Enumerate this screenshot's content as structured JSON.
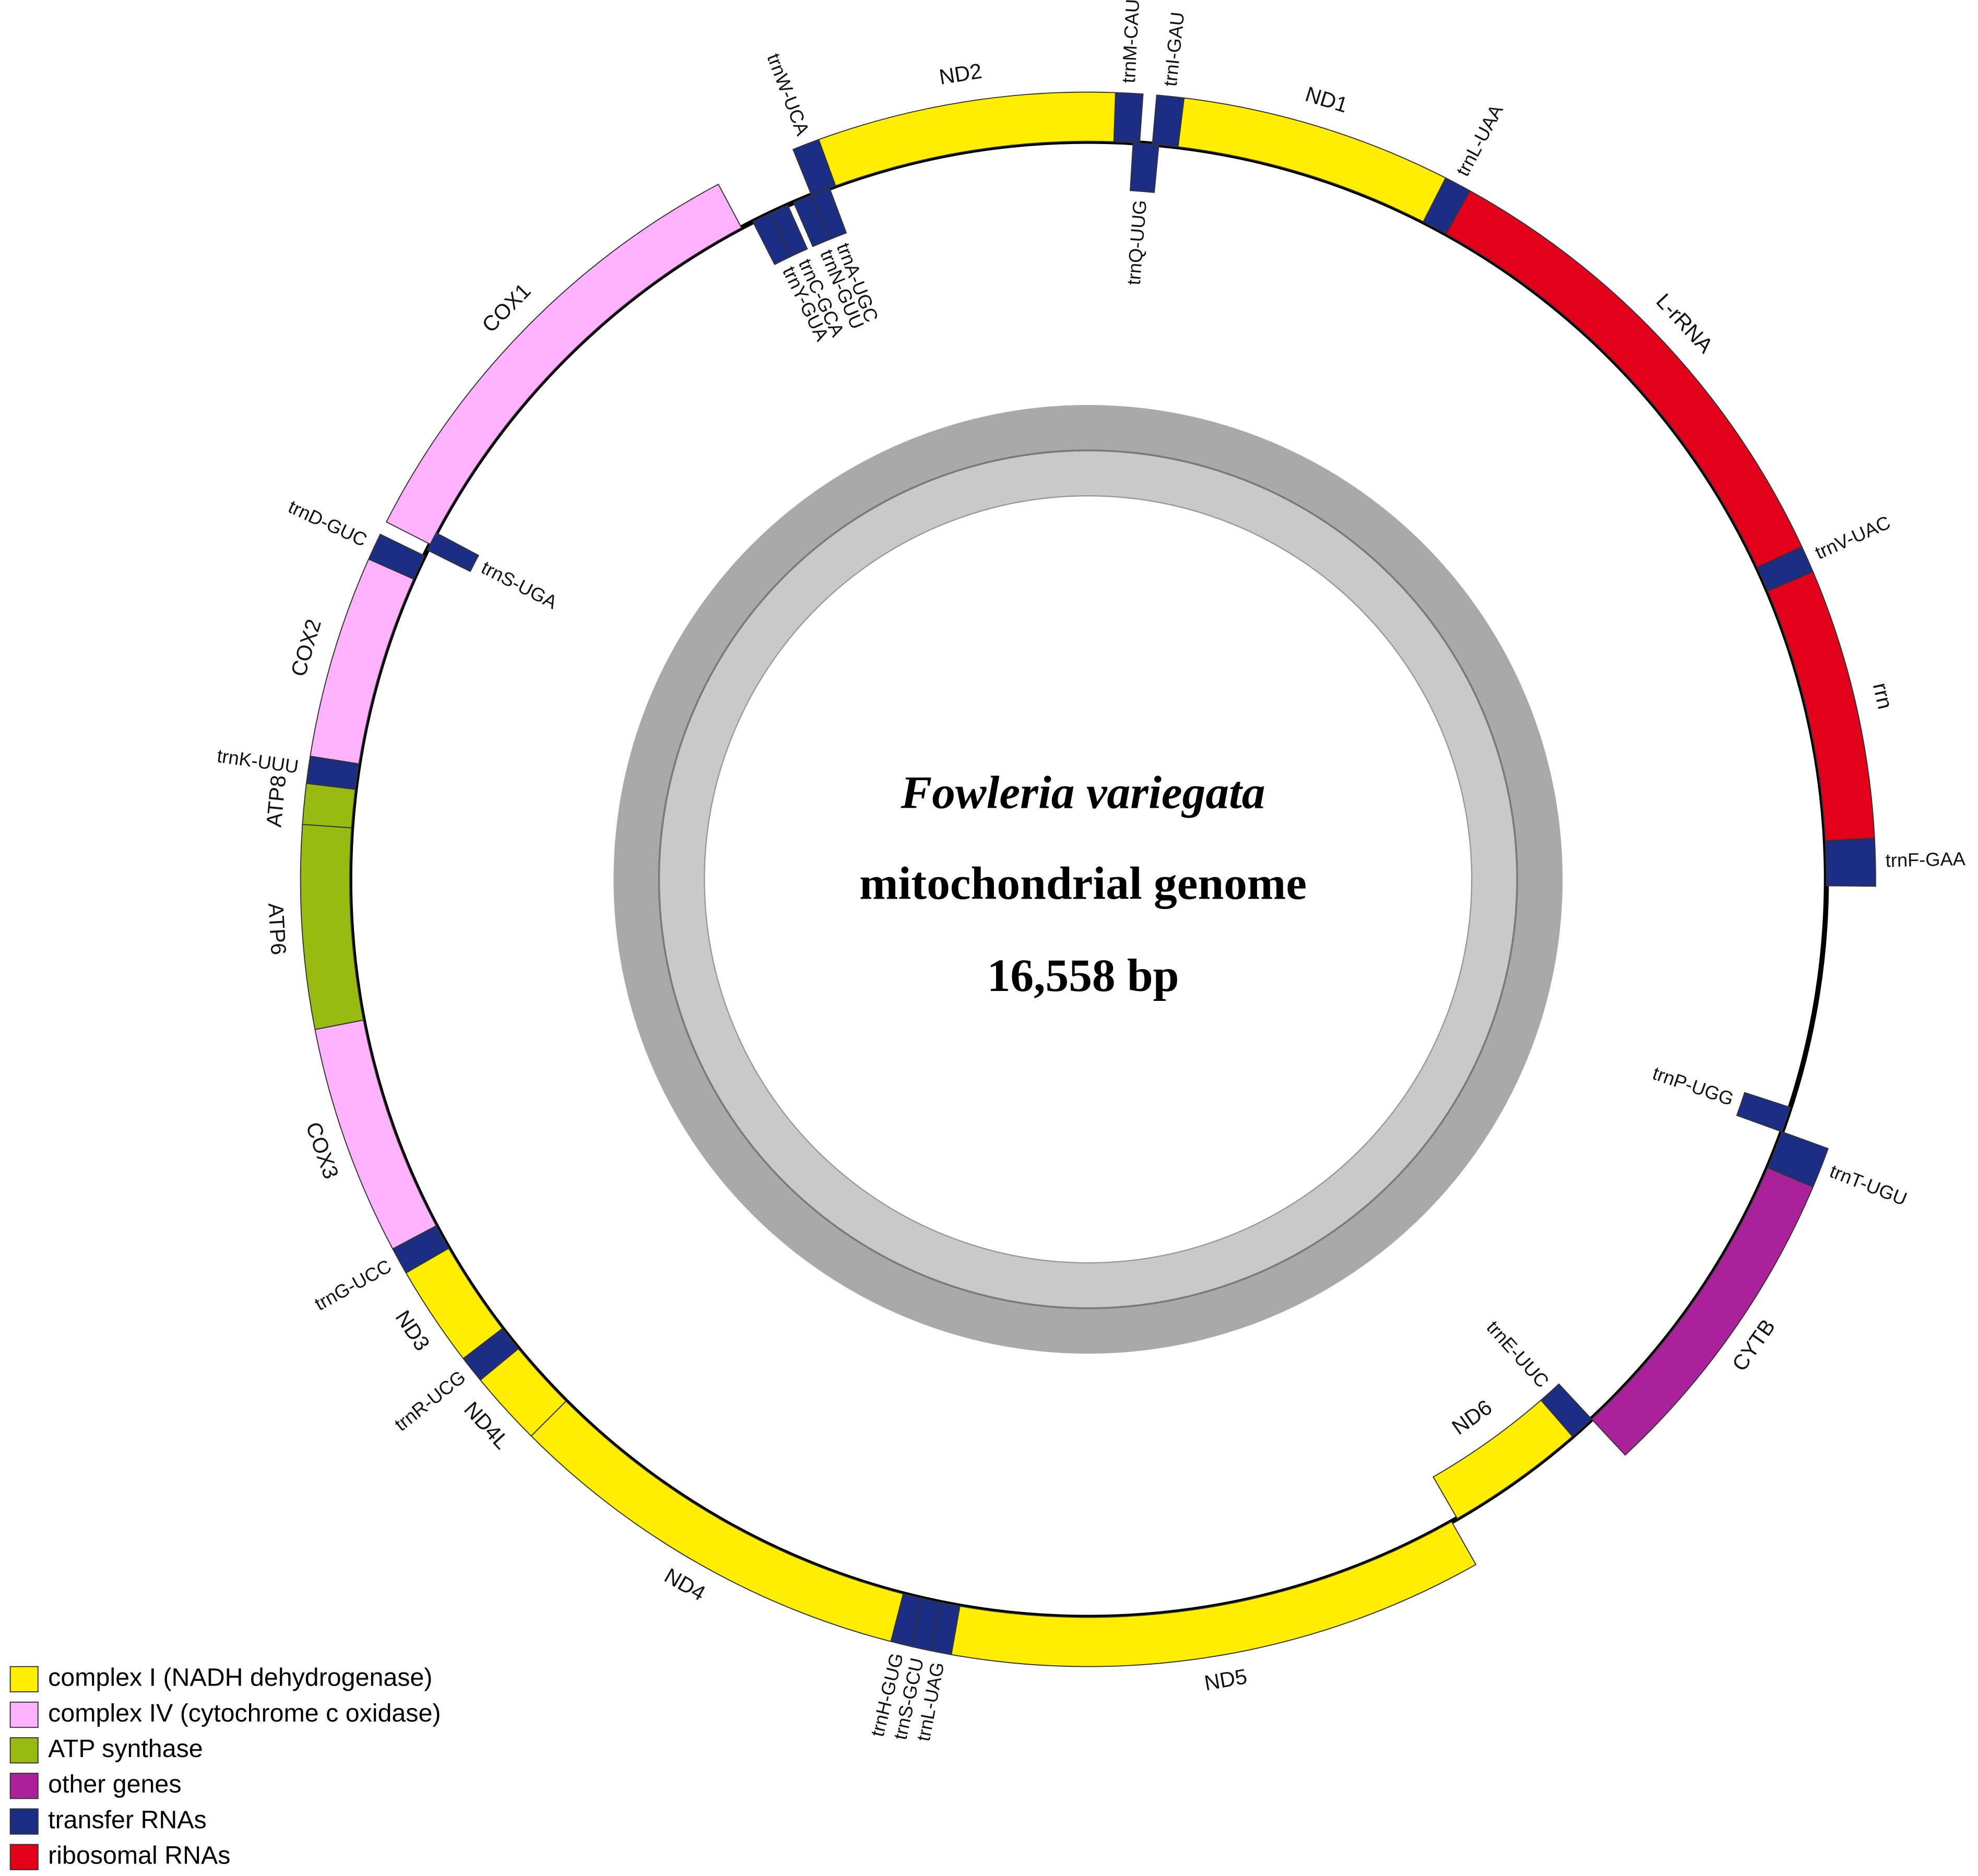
{
  "title": {
    "species": "Fowleria variegata",
    "subtitle": "mitochondrial genome",
    "size": "16,558 bp"
  },
  "genes": [
    {
      "label": "trnF-GAA",
      "category": 4
    },
    {
      "label": "rrn",
      "category": 5
    },
    {
      "label": "trnV-UAC",
      "category": 4
    },
    {
      "label": "L-rRNA",
      "category": 5
    },
    {
      "label": "trnL-UAA",
      "category": 4
    },
    {
      "label": "ND1",
      "category": 0
    },
    {
      "label": "trnI-GAU",
      "category": 4
    },
    {
      "label": "trnQ-UUG",
      "category": 4
    },
    {
      "label": "trnM-CAU",
      "category": 4
    },
    {
      "label": "ND2",
      "category": 0
    },
    {
      "label": "trnW-UCA",
      "category": 4
    },
    {
      "label": "trnA-UGC",
      "category": 4
    },
    {
      "label": "trnN-GUU",
      "category": 4
    },
    {
      "label": "trnC-GCA",
      "category": 4
    },
    {
      "label": "trnY-GUA",
      "category": 4
    },
    {
      "label": "COX1",
      "category": 1
    },
    {
      "label": "trnS-UGA",
      "category": 4
    },
    {
      "label": "trnD-GUC",
      "category": 4
    },
    {
      "label": "COX2",
      "category": 1
    },
    {
      "label": "trnK-UUU",
      "category": 4
    },
    {
      "label": "ATP8",
      "category": 2
    },
    {
      "label": "ATP6",
      "category": 2
    },
    {
      "label": "COX3",
      "category": 1
    },
    {
      "label": "trnG-UCC",
      "category": 4
    },
    {
      "label": "ND3",
      "category": 0
    },
    {
      "label": "trnR-UCG",
      "category": 4
    },
    {
      "label": "ND4L",
      "category": 0
    },
    {
      "label": "ND4",
      "category": 0
    },
    {
      "label": "trnH-GUG",
      "category": 4
    },
    {
      "label": "trnS-GCU",
      "category": 4
    },
    {
      "label": "trnL-UAG",
      "category": 4
    },
    {
      "label": "ND5",
      "category": 0
    },
    {
      "label": "ND6",
      "category": 0
    },
    {
      "label": "trnE-UUC",
      "category": 4
    },
    {
      "label": "CYTB",
      "category": 3
    },
    {
      "label": "trnT-UGU",
      "category": 4
    },
    {
      "label": "trnP-UGG",
      "category": 4
    }
  ],
  "legend": [
    {
      "label": "complex I (NADH dehydrogenase)",
      "color": "#ffee00"
    },
    {
      "label": "complex IV (cytochrome c oxidase)",
      "color": "#ffb3ff"
    },
    {
      "label": "ATP synthase",
      "color": "#99bb11"
    },
    {
      "label": "other genes",
      "color": "#aa2299"
    },
    {
      "label": "transfer RNAs",
      "color": "#1c2e84"
    },
    {
      "label": "ribosomal RNAs",
      "color": "#e2001a"
    }
  ]
}
